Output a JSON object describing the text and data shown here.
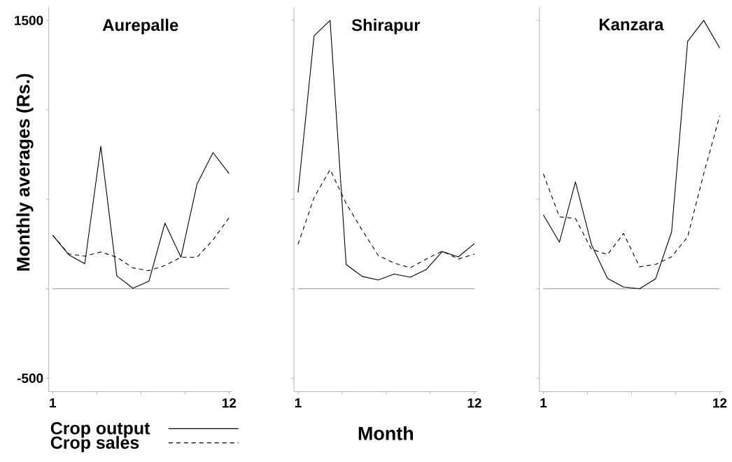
{
  "chart_data": [
    {
      "type": "line",
      "title": "Aurepalle",
      "ylabel": "Monthly averages (Rs.)",
      "x": [
        1,
        2,
        3,
        4,
        5,
        6,
        7,
        8,
        9,
        10,
        11,
        12
      ],
      "series": [
        {
          "name": "Crop output",
          "color": "#000000",
          "line_style": "solid",
          "values": [
            299,
            190,
            140,
            797,
            72,
            3,
            42,
            367,
            176,
            585,
            761,
            644
          ]
        },
        {
          "name": "Crop sales",
          "color": "#000000",
          "line_style": "dashed",
          "values": [
            299,
            195,
            182,
            206,
            176,
            117,
            101,
            130,
            176,
            176,
            273,
            397
          ]
        }
      ],
      "xlim": [
        0.75,
        12.2
      ],
      "ylim": [
        -575,
        1575
      ],
      "xticks": [
        1,
        {
          "value": 3.75,
          "label": null
        },
        {
          "value": 6.5,
          "label": null
        },
        {
          "value": 9.25,
          "label": null
        },
        12
      ],
      "yticks": [
        -500,
        {
          "value": 0,
          "label": null
        },
        {
          "value": 500,
          "label": null
        },
        {
          "value": 1000,
          "label": null
        },
        1500
      ],
      "ref_lines": [
        {
          "axis": "y",
          "value": 0,
          "color": "#000000"
        }
      ],
      "legend": "bottom"
    },
    {
      "type": "line",
      "title": "Shirapur",
      "xlabel": "Month",
      "x": [
        1,
        2,
        3,
        4,
        5,
        6,
        7,
        8,
        9,
        10,
        11,
        12
      ],
      "series": [
        {
          "color": "#000000",
          "line_style": "solid",
          "values": [
            538,
            1414,
            1500,
            136,
            69,
            49,
            82,
            65,
            108,
            208,
            178,
            253
          ]
        },
        {
          "color": "#000000",
          "line_style": "dashed",
          "values": [
            248,
            510,
            666,
            477,
            328,
            186,
            143,
            118,
            166,
            211,
            166,
            194
          ]
        }
      ],
      "xlim": [
        0.75,
        12.2
      ],
      "ylim": [
        -575,
        1575
      ],
      "xticks": [
        1,
        {
          "value": 3.75,
          "label": null
        },
        {
          "value": 6.5,
          "label": null
        },
        {
          "value": 9.25,
          "label": null
        },
        12
      ],
      "yticks": [
        {
          "value": -500,
          "label": null
        },
        {
          "value": 0,
          "label": null
        },
        {
          "value": 500,
          "label": null
        },
        {
          "value": 1000,
          "label": null
        },
        {
          "value": 1500,
          "label": null
        }
      ],
      "ref_lines": [
        {
          "axis": "y",
          "value": 0,
          "color": "#000000"
        }
      ],
      "tick_labels": "x"
    },
    {
      "type": "line",
      "title": "Kanzara",
      "x": [
        1,
        2,
        3,
        4,
        5,
        6,
        7,
        8,
        9,
        10,
        11,
        12
      ],
      "series": [
        {
          "color": "#000000",
          "line_style": "solid",
          "values": [
            413,
            260,
            597,
            247,
            58,
            10,
            0,
            56,
            318,
            1383,
            1500,
            1346
          ]
        },
        {
          "color": "#000000",
          "line_style": "dashed",
          "values": [
            642,
            402,
            393,
            221,
            191,
            309,
            123,
            136,
            179,
            290,
            642,
            967
          ]
        }
      ],
      "xlim": [
        0.75,
        12.2
      ],
      "ylim": [
        -575,
        1575
      ],
      "xticks": [
        1,
        {
          "value": 3.75,
          "label": null
        },
        {
          "value": 6.5,
          "label": null
        },
        {
          "value": 9.25,
          "label": null
        },
        12
      ],
      "yticks": [
        {
          "value": -500,
          "label": null
        },
        {
          "value": 0,
          "label": null
        },
        {
          "value": 500,
          "label": null
        },
        {
          "value": 1000,
          "label": null
        },
        {
          "value": 1500,
          "label": null
        }
      ],
      "ref_lines": [
        {
          "axis": "y",
          "value": 0,
          "color": "#000000"
        }
      ],
      "tick_labels": "x"
    }
  ]
}
